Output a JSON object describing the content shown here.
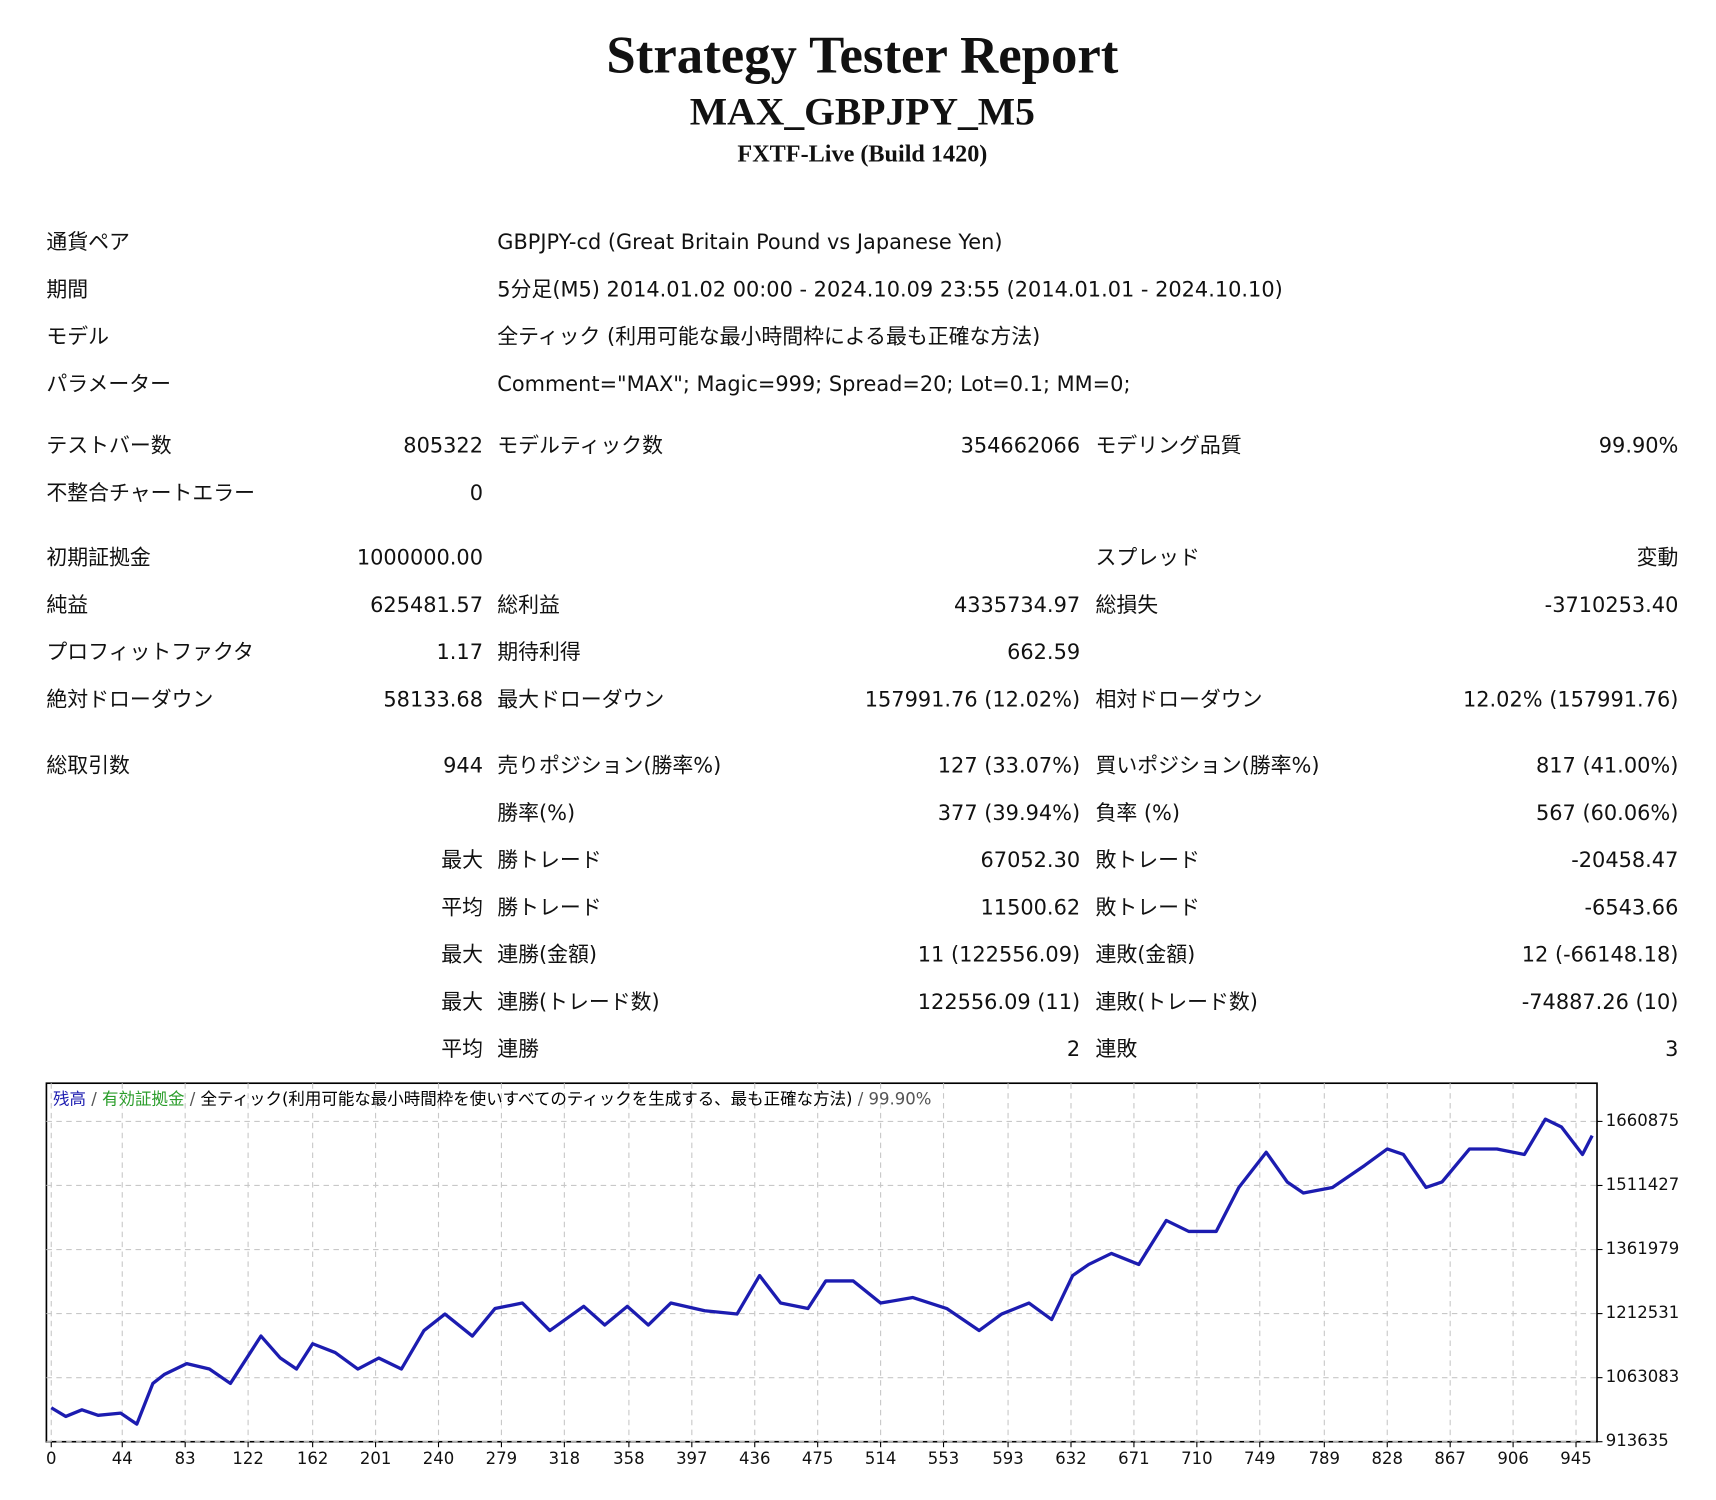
{
  "header": {
    "title": "Strategy Tester Report",
    "subtitle": "MAX_GBPJPY_M5",
    "build": "FXTF-Live (Build 1420)"
  },
  "settings": [
    {
      "label": "通貨ペア",
      "value": "GBPJPY-cd (Great Britain Pound vs Japanese Yen)"
    },
    {
      "label": "期間",
      "value": "5分足(M5) 2014.01.02 00:00 - 2024.10.09 23:55 (2014.01.01 - 2024.10.10)"
    },
    {
      "label": "モデル",
      "value": "全ティック (利用可能な最小時間枠による最も正確な方法)"
    },
    {
      "label": "パラメーター",
      "value": "Comment=\"MAX\"; Magic=999; Spread=20; Lot=0.1; MM=0;"
    }
  ],
  "stats": [
    [
      "テストバー数",
      "805322",
      "モデルティック数",
      "354662066",
      "モデリング品質",
      "99.90%"
    ],
    [
      "不整合チャートエラー",
      "0",
      null,
      null,
      null,
      null
    ],
    [
      "初期証拠金",
      "1000000.00",
      null,
      null,
      "スプレッド",
      "変動"
    ],
    [
      "純益",
      "625481.57",
      "総利益",
      "4335734.97",
      "総損失",
      "-3710253.40"
    ],
    [
      "プロフィットファクタ",
      "1.17",
      "期待利得",
      "662.59",
      null,
      null
    ],
    [
      "絶対ドローダウン",
      "58133.68",
      "最大ドローダウン",
      "157991.76 (12.02%)",
      "相対ドローダウン",
      "12.02% (157991.76)"
    ],
    [
      "総取引数",
      "944",
      "売りポジション(勝率%)",
      "127 (33.07%)",
      "買いポジション(勝率%)",
      "817 (41.00%)"
    ],
    [
      null,
      null,
      "勝率(%)",
      "377 (39.94%)",
      "負率 (%)",
      "567 (60.06%)"
    ],
    [
      null,
      "最大",
      "勝トレード",
      "67052.30",
      "敗トレード",
      "-20458.47"
    ],
    [
      null,
      "平均",
      "勝トレード",
      "11500.62",
      "敗トレード",
      "-6543.66"
    ],
    [
      null,
      "最大",
      "連勝(金額)",
      "11 (122556.09)",
      "連敗(金額)",
      "12 (-66148.18)"
    ],
    [
      null,
      "最大",
      "連勝(トレード数)",
      "122556.09 (11)",
      "連敗(トレード数)",
      "-74887.26 (10)"
    ],
    [
      null,
      "平均",
      "連勝",
      "2",
      "連敗",
      "3"
    ]
  ],
  "chart_data": {
    "type": "line",
    "series": [
      {
        "name": "残高",
        "color": "#1c1cb0",
        "values": [
          993000,
          972700,
          988100,
          975300,
          980400,
          954700,
          1049700,
          1070300,
          1095900,
          1083100,
          1049700,
          1160200,
          1108800,
          1083100,
          1142200,
          1121600,
          1083100,
          1108800,
          1083100,
          1173000,
          1211500,
          1160200,
          1224300,
          1237200,
          1173000,
          1229500,
          1185800,
          1229500,
          1185800,
          1237200,
          1219200,
          1211500,
          1301400,
          1237200,
          1224300,
          1288600,
          1288600,
          1237200,
          1250000,
          1224300,
          1173000,
          1211500,
          1237200,
          1198700,
          1301400,
          1327100,
          1352800,
          1327100,
          1429800,
          1404100,
          1404100,
          1506800,
          1589000,
          1519700,
          1494000,
          1506800,
          1558200,
          1596700,
          1583800,
          1506800,
          1519700,
          1596700,
          1596700,
          1583800,
          1666000,
          1648000,
          1583800,
          1627500
        ]
      }
    ],
    "x": [
      0,
      9,
      19,
      29,
      43,
      53,
      63,
      70,
      84,
      98,
      111,
      130,
      142,
      152,
      162,
      176,
      190,
      203,
      217,
      231,
      244,
      261,
      275,
      292,
      309,
      330,
      343,
      357,
      370,
      384,
      405,
      425,
      439,
      452,
      469,
      480,
      497,
      514,
      534,
      555,
      575,
      589,
      606,
      620,
      633,
      643,
      657,
      674,
      691,
      705,
      722,
      736,
      753,
      766,
      776,
      794,
      814,
      828,
      838,
      852,
      862,
      879,
      896,
      913,
      926,
      936,
      949,
      955
    ],
    "legend_notes": [
      {
        "text": "/",
        "color": "#555555"
      },
      {
        "text": "有効証拠金",
        "color": "#2a9d2a"
      },
      {
        "text": "/",
        "color": "#555555"
      },
      {
        "text": "全ティック(利用可能な最小時間枠を使いすべてのティックを生成する、最も正確な方法)",
        "color": "#000000"
      },
      {
        "text": "/",
        "color": "#555555"
      },
      {
        "text": "99.90%",
        "color": "#555555"
      }
    ],
    "xlim": [
      -3,
      958
    ],
    "ylim": [
      913635,
      1750000
    ],
    "xticks": [
      0,
      44,
      83,
      122,
      162,
      201,
      240,
      279,
      318,
      358,
      397,
      436,
      475,
      514,
      553,
      593,
      632,
      671,
      710,
      749,
      789,
      828,
      867,
      906,
      945
    ],
    "yticks": [
      913635,
      1063083,
      1212531,
      1361979,
      1511427,
      1660875
    ],
    "grid": true
  }
}
